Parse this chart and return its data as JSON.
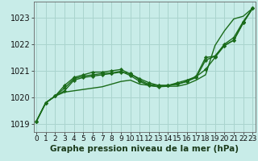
{
  "bg_color": "#c8ece8",
  "grid_color": "#aad4ce",
  "line_color": "#1a6b1a",
  "marker_color": "#1a6b1a",
  "xlabel": "Graphe pression niveau de la mer (hPa)",
  "xlabel_fontsize": 7.5,
  "ylim": [
    1018.7,
    1023.6
  ],
  "xlim": [
    -0.3,
    23.3
  ],
  "yticks": [
    1019,
    1020,
    1021,
    1022,
    1023
  ],
  "xticks": [
    0,
    1,
    2,
    3,
    4,
    5,
    6,
    7,
    8,
    9,
    10,
    11,
    12,
    13,
    14,
    15,
    16,
    17,
    18,
    19,
    20,
    21,
    22,
    23
  ],
  "series": [
    {
      "y": [
        1019.1,
        1019.8,
        1020.05,
        1020.2,
        1020.25,
        1020.3,
        1020.35,
        1020.4,
        1020.5,
        1020.6,
        1020.65,
        1020.5,
        1020.45,
        1020.4,
        1020.42,
        1020.42,
        1020.5,
        1020.65,
        1020.85,
        1021.95,
        1022.5,
        1022.95,
        1023.05,
        1023.35
      ],
      "markers": false,
      "linewidth": 1.0
    },
    {
      "y": [
        1019.1,
        1019.8,
        1020.05,
        1020.25,
        1020.65,
        1020.75,
        1020.8,
        1020.85,
        1020.9,
        1020.95,
        1020.9,
        1020.65,
        1020.48,
        1020.45,
        1020.45,
        1020.55,
        1020.65,
        1020.78,
        1021.05,
        1021.5,
        1021.95,
        1022.15,
        1022.8,
        1023.35
      ],
      "markers": true,
      "linewidth": 1.0
    },
    {
      "y": [
        1019.1,
        1019.8,
        1020.05,
        1020.35,
        1020.7,
        1020.8,
        1020.85,
        1020.9,
        1020.92,
        1020.98,
        1020.82,
        1020.6,
        1020.45,
        1020.4,
        1020.45,
        1020.5,
        1020.6,
        1020.75,
        1021.4,
        1021.55,
        1021.95,
        1022.15,
        1022.8,
        1023.35
      ],
      "markers": true,
      "linewidth": 1.0
    },
    {
      "y": [
        1019.1,
        1019.8,
        1020.05,
        1020.45,
        1020.75,
        1020.85,
        1020.95,
        1020.95,
        1021.0,
        1021.05,
        1020.88,
        1020.7,
        1020.55,
        1020.45,
        1020.45,
        1020.5,
        1020.6,
        1020.8,
        1021.5,
        1021.55,
        1022.0,
        1022.25,
        1022.85,
        1023.35
      ],
      "markers": true,
      "linewidth": 1.0
    }
  ],
  "tick_fontsize": 6.5,
  "ytick_fontsize": 7.0,
  "spine_color": "#666666"
}
